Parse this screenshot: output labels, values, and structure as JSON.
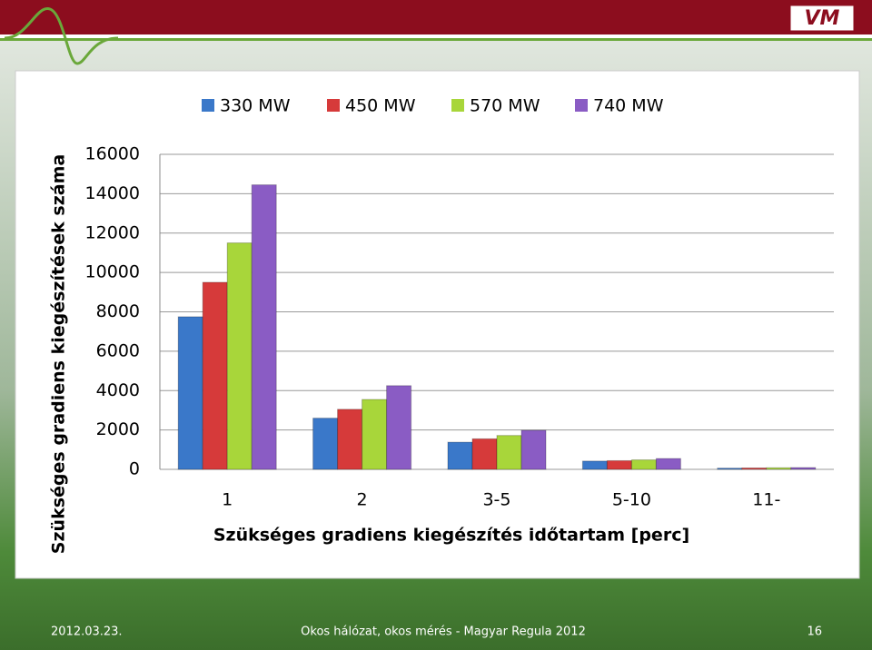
{
  "header": {
    "logo": "VM"
  },
  "chart_data": {
    "type": "bar",
    "x_label": "Szükséges gradiens kiegészítés időtartam [perc]",
    "y_label": "Szükséges gradiens kiegészítések száma",
    "categories": [
      "1",
      "2",
      "3-5",
      "5-10",
      "11-"
    ],
    "series": [
      {
        "name": "330 MW",
        "color": "#3a78c9",
        "values": [
          7750,
          2600,
          1380,
          420,
          60
        ]
      },
      {
        "name": "450 MW",
        "color": "#d63a3a",
        "values": [
          9500,
          3050,
          1550,
          440,
          70
        ]
      },
      {
        "name": "570 MW",
        "color": "#a8d63a",
        "values": [
          11500,
          3550,
          1720,
          480,
          80
        ]
      },
      {
        "name": "740 MW",
        "color": "#8a5cc4",
        "values": [
          14450,
          4250,
          1980,
          550,
          90
        ]
      }
    ],
    "ylim": [
      0,
      16000
    ],
    "yticks": [
      0,
      2000,
      4000,
      6000,
      8000,
      10000,
      12000,
      14000,
      16000
    ],
    "grid": true,
    "legend": "top"
  },
  "footer": {
    "date": "2012.03.23.",
    "title": "Okos hálózat, okos mérés - Magyar Regula 2012",
    "page": "16"
  }
}
